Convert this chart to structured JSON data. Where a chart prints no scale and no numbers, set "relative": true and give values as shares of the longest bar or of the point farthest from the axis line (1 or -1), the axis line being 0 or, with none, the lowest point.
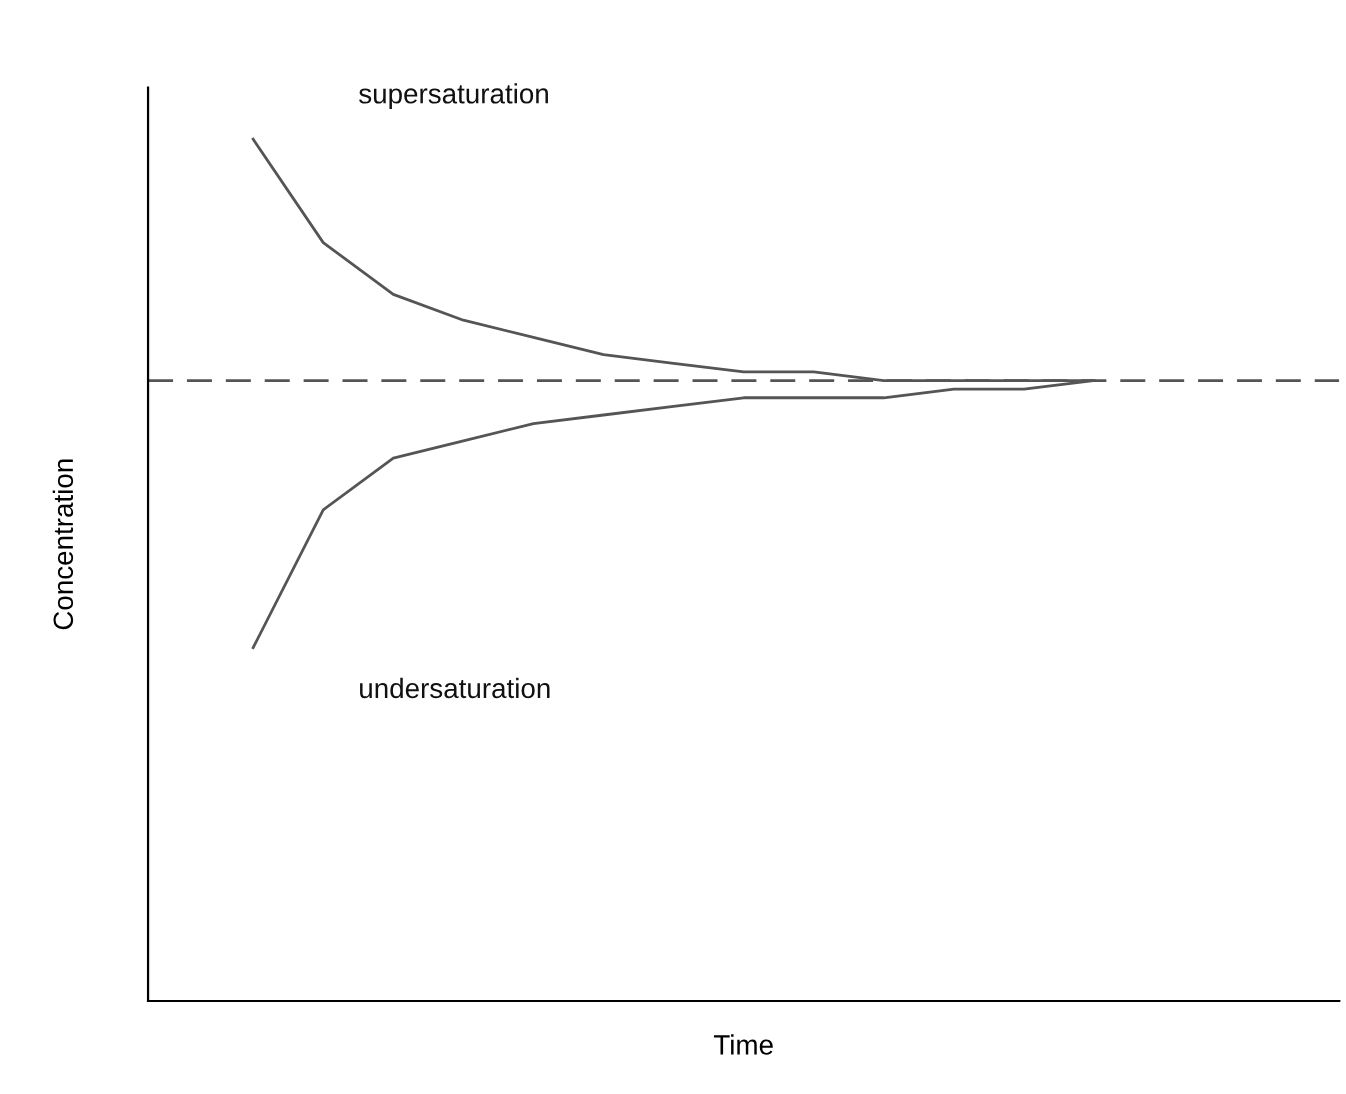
{
  "chart_data": {
    "type": "line",
    "relative": true,
    "xlabel": "Time",
    "ylabel": "Concentration",
    "categories": [
      null,
      null,
      null,
      null,
      null,
      null,
      null,
      null,
      null,
      null,
      null,
      null,
      null,
      null,
      null,
      null,
      null
    ],
    "series": [
      {
        "color": "#555555",
        "values": [
          null,
          1.0,
          0.88,
          0.82,
          0.79,
          0.77,
          0.75,
          0.74,
          0.73,
          0.73,
          0.72,
          0.72,
          0.72,
          0.72,
          null,
          null,
          null
        ]
      },
      {
        "color": "#555555",
        "values": [
          null,
          0.41,
          0.57,
          0.63,
          0.65,
          0.67,
          0.68,
          0.69,
          0.7,
          0.7,
          0.7,
          0.71,
          0.71,
          0.72,
          null,
          null,
          null
        ]
      }
    ],
    "ref_lines": [
      {
        "axis": "y",
        "value": 0.72,
        "color": "#555555",
        "line_style": "dashed"
      }
    ],
    "annotations": [
      "supersaturation",
      "undersaturation"
    ],
    "grid": false,
    "legend": false,
    "tick_labels": false
  }
}
